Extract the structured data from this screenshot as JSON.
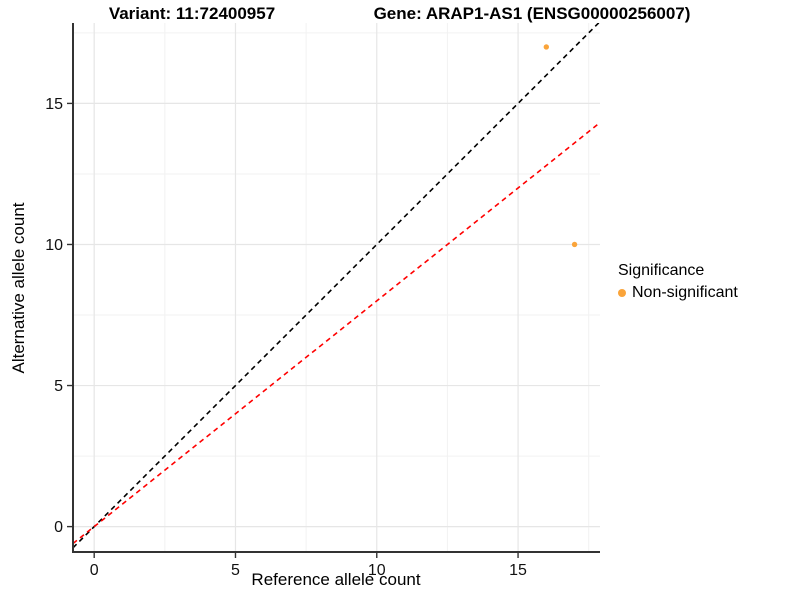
{
  "titles": {
    "variant": "Variant: 11:72400957",
    "gene": "Gene: ARAP1-AS1 (ENSG00000256007)"
  },
  "chart_data": {
    "type": "scatter",
    "xlabel": "Reference allele count",
    "ylabel": "Alternative allele count",
    "xlim": [
      -0.75,
      17.9
    ],
    "ylim": [
      -0.9,
      17.85
    ],
    "x_ticks": [
      0,
      5,
      10,
      15
    ],
    "y_ticks": [
      0,
      5,
      10,
      15
    ],
    "minor_ticks": [
      2.5,
      7.5,
      12.5,
      17.5
    ],
    "grid": true,
    "legend_position": "right",
    "points": [
      {
        "x": 16,
        "y": 17,
        "series": "Non-significant"
      },
      {
        "x": 17,
        "y": 10,
        "series": "Non-significant"
      }
    ],
    "lines": [
      {
        "name": "identity",
        "slope": 1,
        "intercept": 0,
        "color": "#000000",
        "dashed": true
      },
      {
        "name": "expected-ratio",
        "slope": 0.8,
        "intercept": 0,
        "color": "#FF0000",
        "dashed": true
      }
    ],
    "legend": {
      "title": "Significance",
      "items": [
        {
          "label": "Non-significant",
          "color": "#FAA43A"
        }
      ]
    }
  }
}
